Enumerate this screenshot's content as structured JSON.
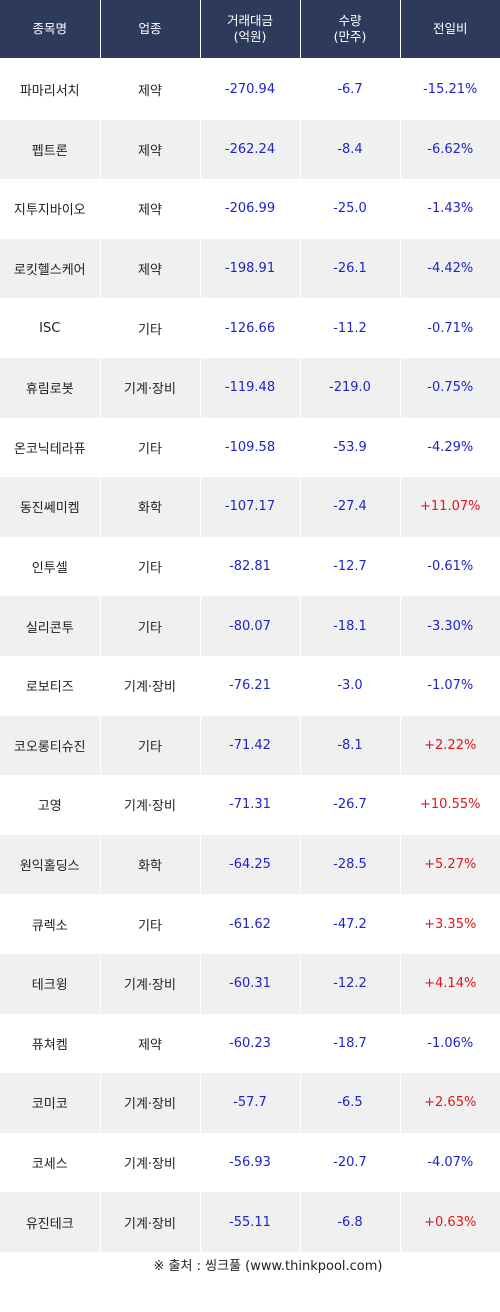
{
  "table": {
    "headers": [
      "종목명",
      "업종",
      "거래대금\n(억원)",
      "수량\n(만주)",
      "전일비"
    ],
    "header_line1": [
      "종목명",
      "업종",
      "거래대금",
      "수량",
      "전일비"
    ],
    "header_line2": [
      "",
      "",
      "(억원)",
      "(만주)",
      ""
    ],
    "rows": [
      {
        "name": "파마리서치",
        "sector": "제약",
        "amount": "-270.94",
        "volume": "-6.7",
        "change": "-15.21%"
      },
      {
        "name": "펩트론",
        "sector": "제약",
        "amount": "-262.24",
        "volume": "-8.4",
        "change": "-6.62%"
      },
      {
        "name": "지투지바이오",
        "sector": "제약",
        "amount": "-206.99",
        "volume": "-25.0",
        "change": "-1.43%"
      },
      {
        "name": "로킷헬스케어",
        "sector": "제약",
        "amount": "-198.91",
        "volume": "-26.1",
        "change": "-4.42%"
      },
      {
        "name": "ISC",
        "sector": "기타",
        "amount": "-126.66",
        "volume": "-11.2",
        "change": "-0.71%"
      },
      {
        "name": "휴림로봇",
        "sector": "기계·장비",
        "amount": "-119.48",
        "volume": "-219.0",
        "change": "-0.75%"
      },
      {
        "name": "온코닉테라퓨",
        "sector": "기타",
        "amount": "-109.58",
        "volume": "-53.9",
        "change": "-4.29%"
      },
      {
        "name": "동진쎄미켐",
        "sector": "화학",
        "amount": "-107.17",
        "volume": "-27.4",
        "change": "+11.07%"
      },
      {
        "name": "인투셀",
        "sector": "기타",
        "amount": "-82.81",
        "volume": "-12.7",
        "change": "-0.61%"
      },
      {
        "name": "실리콘투",
        "sector": "기타",
        "amount": "-80.07",
        "volume": "-18.1",
        "change": "-3.30%"
      },
      {
        "name": "로보티즈",
        "sector": "기계·장비",
        "amount": "-76.21",
        "volume": "-3.0",
        "change": "-1.07%"
      },
      {
        "name": "코오롱티슈진",
        "sector": "기타",
        "amount": "-71.42",
        "volume": "-8.1",
        "change": "+2.22%"
      },
      {
        "name": "고영",
        "sector": "기계·장비",
        "amount": "-71.31",
        "volume": "-26.7",
        "change": "+10.55%"
      },
      {
        "name": "원익홀딩스",
        "sector": "화학",
        "amount": "-64.25",
        "volume": "-28.5",
        "change": "+5.27%"
      },
      {
        "name": "큐렉소",
        "sector": "기타",
        "amount": "-61.62",
        "volume": "-47.2",
        "change": "+3.35%"
      },
      {
        "name": "테크윙",
        "sector": "기계·장비",
        "amount": "-60.31",
        "volume": "-12.2",
        "change": "+4.14%"
      },
      {
        "name": "퓨쳐켐",
        "sector": "제약",
        "amount": "-60.23",
        "volume": "-18.7",
        "change": "-1.06%"
      },
      {
        "name": "코미코",
        "sector": "기계·장비",
        "amount": "-57.7",
        "volume": "-6.5",
        "change": "+2.65%"
      },
      {
        "name": "코세스",
        "sector": "기계·장비",
        "amount": "-56.93",
        "volume": "-20.7",
        "change": "-4.07%"
      },
      {
        "name": "유진테크",
        "sector": "기계·장비",
        "amount": "-55.11",
        "volume": "-6.8",
        "change": "+0.63%"
      }
    ]
  },
  "source": "※ 출처 : 씽크풀 (www.thinkpool.com)",
  "colors": {
    "header_bg": "#2e3a5c",
    "negative": "#1f24c6",
    "positive": "#e2161b",
    "stripe": "#f0f0f0"
  }
}
